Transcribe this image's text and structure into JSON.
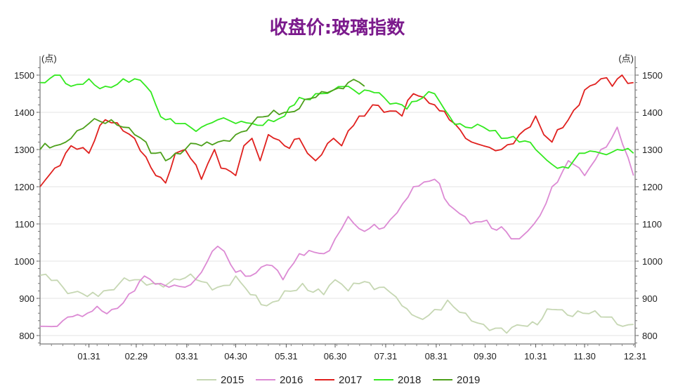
{
  "chart_data": {
    "type": "line",
    "title": "收盘价:玻璃指数",
    "title_color": "#7b1a8c",
    "y_unit_left": "(点)",
    "y_unit_right": "(点)",
    "ylim": [
      780,
      1520
    ],
    "y_ticks": [
      800,
      900,
      1000,
      1100,
      1200,
      1300,
      1400,
      1500
    ],
    "x_ticks": [
      "01.31",
      "02.29",
      "03.31",
      "04.30",
      "05.31",
      "06.30",
      "07.31",
      "08.31",
      "09.30",
      "10.31",
      "11.30",
      "12.31"
    ],
    "grid": true,
    "legend_position": "bottom",
    "series": [
      {
        "name": "2015",
        "color": "#c6d7b3",
        "x": [
          1,
          15,
          30,
          40,
          59,
          70,
          90,
          100,
          110,
          121,
          130,
          140,
          151,
          162,
          175,
          182,
          190,
          200,
          212,
          223,
          232,
          243,
          251,
          262,
          273,
          284,
          300,
          315,
          334,
          345,
          355,
          365
        ],
        "y": [
          962,
          930,
          905,
          920,
          950,
          940,
          955,
          945,
          930,
          960,
          910,
          880,
          920,
          940,
          910,
          950,
          920,
          945,
          930,
          880,
          850,
          870,
          895,
          860,
          830,
          820,
          825,
          870,
          860,
          850,
          830,
          830
        ]
      },
      {
        "name": "2016",
        "color": "#dc8ad4",
        "x": [
          1,
          15,
          30,
          45,
          59,
          65,
          75,
          80,
          90,
          100,
          110,
          118,
          121,
          130,
          140,
          150,
          160,
          175,
          182,
          190,
          200,
          212,
          220,
          230,
          243,
          255,
          265,
          275,
          290,
          295,
          300,
          304,
          315,
          325,
          335,
          345,
          355,
          365
        ],
        "y": [
          825,
          840,
          860,
          870,
          920,
          960,
          940,
          930,
          930,
          970,
          1040,
          990,
          970,
          960,
          990,
          950,
          1020,
          1020,
          1060,
          1120,
          1080,
          1090,
          1130,
          1200,
          1220,
          1140,
          1100,
          1110,
          1060,
          1060,
          1080,
          1100,
          1200,
          1270,
          1230,
          1300,
          1360,
          1230
        ]
      },
      {
        "name": "2017",
        "color": "#e0201e",
        "x": [
          1,
          10,
          20,
          31,
          41,
          52,
          59,
          66,
          72,
          78,
          84,
          90,
          100,
          108,
          112,
          121,
          126,
          131,
          136,
          141,
          151,
          160,
          165,
          170,
          181,
          186,
          190,
          200,
          205,
          212,
          223,
          230,
          243,
          252,
          262,
          273,
          284,
          295,
          305,
          310,
          315,
          325,
          335,
          345,
          352,
          358,
          365
        ],
        "y": [
          1200,
          1250,
          1310,
          1290,
          1380,
          1350,
          1330,
          1280,
          1230,
          1210,
          1290,
          1300,
          1220,
          1300,
          1250,
          1230,
          1310,
          1330,
          1270,
          1340,
          1310,
          1330,
          1290,
          1270,
          1330,
          1310,
          1350,
          1390,
          1420,
          1400,
          1390,
          1450,
          1420,
          1380,
          1330,
          1310,
          1300,
          1340,
          1390,
          1340,
          1320,
          1380,
          1460,
          1490,
          1470,
          1500,
          1480
        ]
      },
      {
        "name": "2018",
        "color": "#33e91f",
        "x": [
          1,
          10,
          20,
          31,
          41,
          52,
          59,
          66,
          72,
          78,
          84,
          90,
          100,
          110,
          121,
          131,
          141,
          151,
          160,
          170,
          181,
          190,
          200,
          212,
          223,
          232,
          243,
          252,
          262,
          273,
          284,
          295,
          305,
          315,
          325,
          335,
          345,
          355,
          365
        ],
        "y": [
          1480,
          1500,
          1470,
          1490,
          1470,
          1490,
          1490,
          1470,
          1420,
          1380,
          1370,
          1370,
          1360,
          1380,
          1370,
          1370,
          1380,
          1390,
          1440,
          1450,
          1460,
          1470,
          1460,
          1440,
          1420,
          1430,
          1450,
          1390,
          1360,
          1360,
          1330,
          1320,
          1300,
          1260,
          1250,
          1290,
          1290,
          1300,
          1290
        ]
      },
      {
        "name": "2019",
        "color": "#4ca01a",
        "x": [
          1,
          10,
          20,
          31,
          41,
          52,
          59,
          66,
          72,
          78,
          84,
          90,
          100,
          110,
          121,
          131,
          141,
          151,
          160,
          170,
          181,
          190,
          200
        ],
        "y": [
          1300,
          1310,
          1330,
          1370,
          1370,
          1360,
          1340,
          1320,
          1290,
          1270,
          1290,
          1300,
          1310,
          1320,
          1340,
          1370,
          1390,
          1400,
          1410,
          1440,
          1460,
          1480,
          1470
        ]
      }
    ]
  }
}
